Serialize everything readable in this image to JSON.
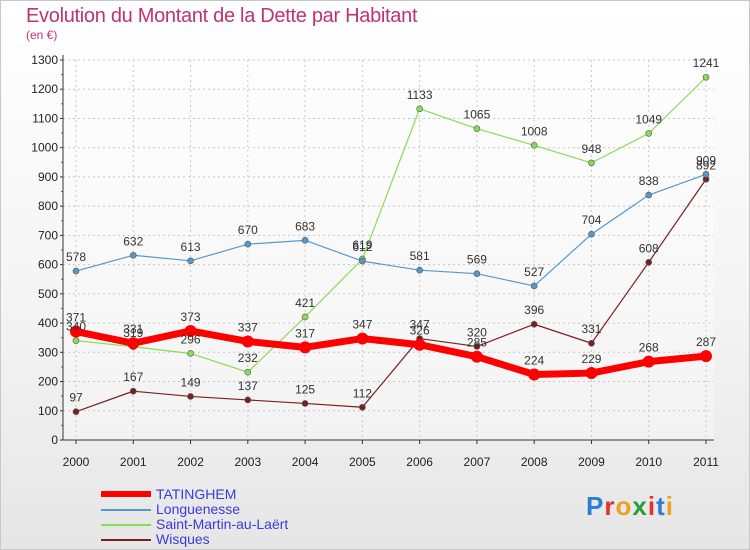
{
  "title": "Evolution du Montant de la Dette par Habitant",
  "subtitle": "(en €)",
  "logo": "Proxiti",
  "chart_data": {
    "type": "line",
    "x": [
      "2000",
      "2001",
      "2002",
      "2003",
      "2004",
      "2005",
      "2006",
      "2007",
      "2008",
      "2009",
      "2010",
      "2011"
    ],
    "ylim": [
      0,
      1300
    ],
    "yticks": [
      0,
      100,
      200,
      300,
      400,
      500,
      600,
      700,
      800,
      900,
      1000,
      1100,
      1200,
      1300
    ],
    "grid": true,
    "legend_position": "bottom-left",
    "series": [
      {
        "name": "TATINGHEM",
        "color": "#ff0000",
        "values": [
          371,
          331,
          373,
          337,
          317,
          347,
          326,
          285,
          224,
          229,
          268,
          287
        ]
      },
      {
        "name": "Longuenesse",
        "color": "#5599cc",
        "values": [
          578,
          632,
          613,
          670,
          683,
          612,
          581,
          569,
          527,
          704,
          838,
          909
        ]
      },
      {
        "name": "Saint-Martin-au-Laërt",
        "color": "#88dd55",
        "values": [
          340,
          319,
          296,
          232,
          421,
          619,
          1133,
          1065,
          1008,
          948,
          1049,
          1241
        ]
      },
      {
        "name": "Wisques",
        "color": "#7a2020",
        "values": [
          97,
          167,
          149,
          137,
          125,
          112,
          347,
          320,
          396,
          331,
          608,
          892
        ]
      }
    ]
  }
}
